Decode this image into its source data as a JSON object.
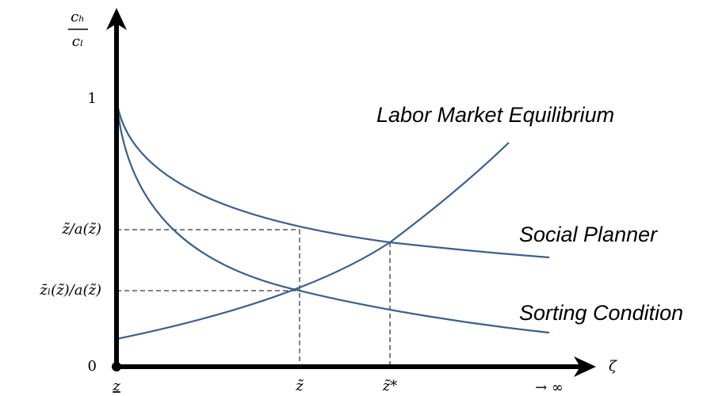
{
  "axes": {
    "y_label": {
      "numerator": "cₕ",
      "denominator": "cₗ"
    },
    "x_label": "ζ",
    "y_ticks": [
      "1",
      "0",
      "z̃/a(z̃)",
      "z̄ₗ(z̃)/a(z̃)"
    ],
    "x_ticks": [
      "z",
      "z̃",
      "z̃*",
      "→ ∞"
    ]
  },
  "curves": [
    "Labor Market Equilibrium",
    "Social Planner",
    "Sorting Condition"
  ]
}
